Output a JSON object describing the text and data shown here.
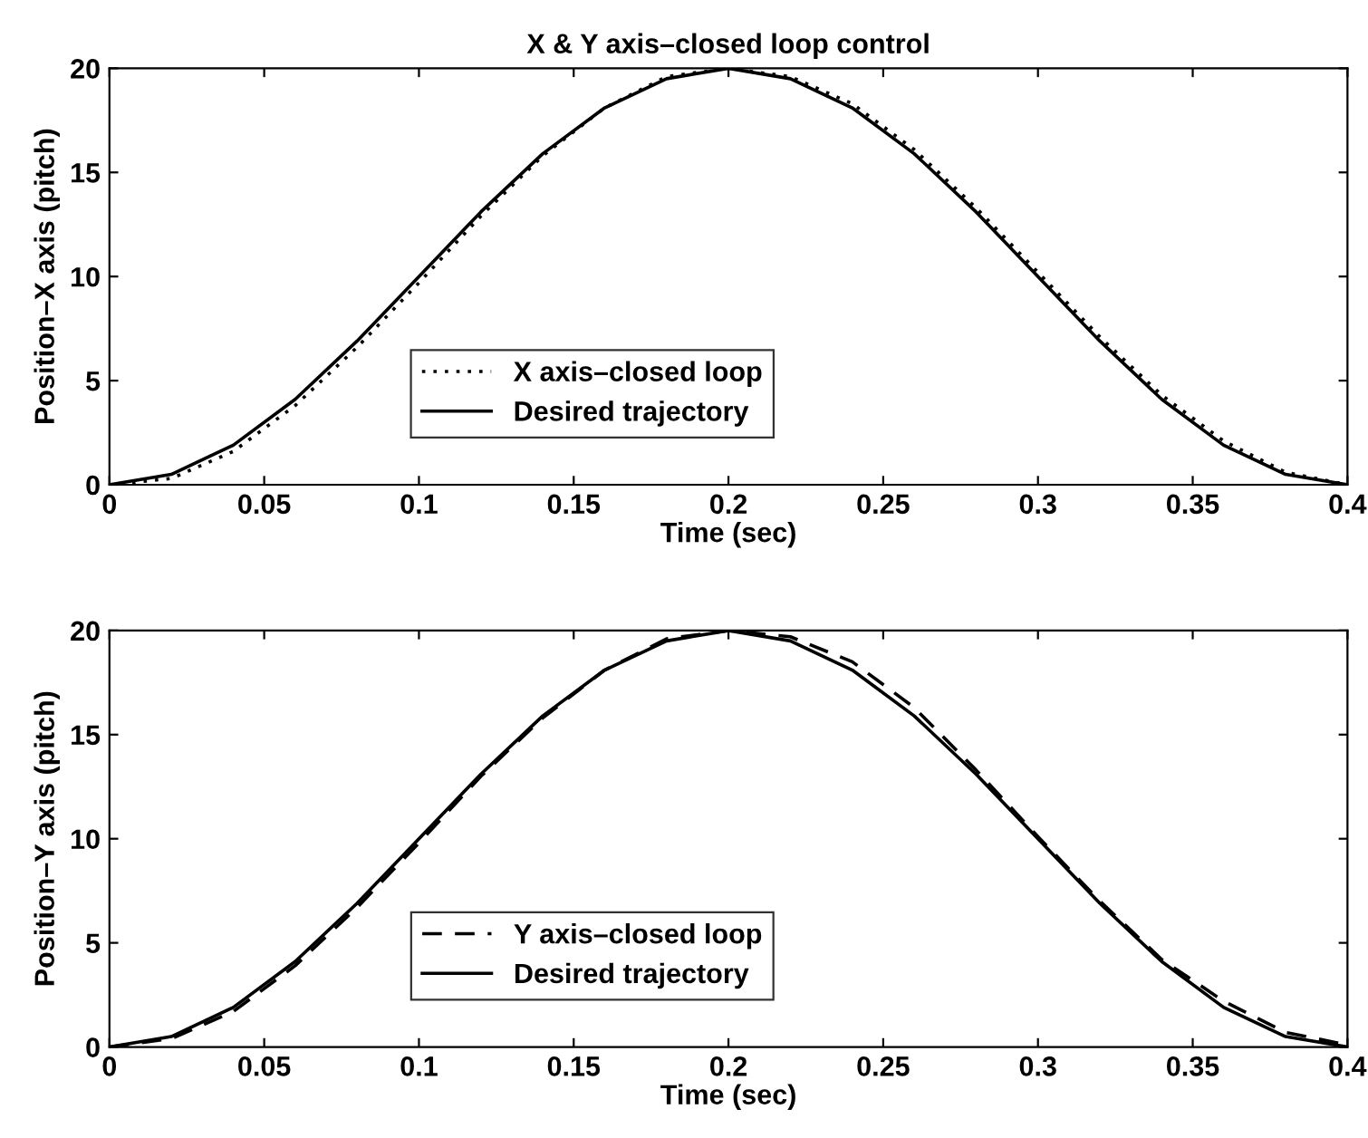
{
  "chart_data": [
    {
      "type": "line",
      "title": "X & Y axis–closed loop control",
      "xlabel": "Time (sec)",
      "ylabel": "Position–X axis (pitch)",
      "xlim": [
        0,
        0.4
      ],
      "ylim": [
        0,
        20
      ],
      "xticks": [
        0,
        0.05,
        0.1,
        0.15,
        0.2,
        0.25,
        0.3,
        0.35,
        0.4
      ],
      "yticks": [
        0,
        5,
        10,
        15,
        20
      ],
      "grid": false,
      "legend": "bottom",
      "x": [
        0,
        0.02,
        0.04,
        0.06,
        0.08,
        0.1,
        0.12,
        0.14,
        0.16,
        0.18,
        0.2,
        0.22,
        0.24,
        0.26,
        0.28,
        0.3,
        0.32,
        0.34,
        0.36,
        0.38,
        0.4
      ],
      "series": [
        {
          "name": "X axis–closed loop",
          "color": "#000000",
          "line_style": "dotted",
          "values": [
            0,
            0.3,
            1.6,
            3.8,
            6.6,
            9.7,
            12.9,
            15.8,
            18.1,
            19.6,
            20,
            19.6,
            18.3,
            16.1,
            13.3,
            10.2,
            7.1,
            4.3,
            2.1,
            0.6,
            0
          ]
        },
        {
          "name": "Desired trajectory",
          "color": "#000000",
          "line_style": "solid",
          "values": [
            0,
            0.5,
            1.9,
            4.1,
            6.9,
            10,
            13.1,
            15.9,
            18.1,
            19.5,
            20,
            19.5,
            18.1,
            15.9,
            13.1,
            10,
            6.9,
            4.1,
            1.9,
            0.5,
            0
          ]
        }
      ]
    },
    {
      "type": "line",
      "xlabel": "Time (sec)",
      "ylabel": "Position–Y axis (pitch)",
      "xlim": [
        0,
        0.4
      ],
      "ylim": [
        0,
        20
      ],
      "xticks": [
        0,
        0.05,
        0.1,
        0.15,
        0.2,
        0.25,
        0.3,
        0.35,
        0.4
      ],
      "yticks": [
        0,
        5,
        10,
        15,
        20
      ],
      "grid": false,
      "legend": "bottom",
      "x": [
        0,
        0.02,
        0.04,
        0.06,
        0.08,
        0.1,
        0.12,
        0.14,
        0.16,
        0.18,
        0.2,
        0.22,
        0.24,
        0.26,
        0.28,
        0.3,
        0.32,
        0.34,
        0.36,
        0.38,
        0.4
      ],
      "series": [
        {
          "name": "Y axis–closed loop",
          "color": "#000000",
          "line_style": "dashed",
          "values": [
            0,
            0.4,
            1.7,
            3.9,
            6.7,
            9.8,
            13.0,
            15.8,
            18.1,
            19.6,
            20,
            19.7,
            18.5,
            16.3,
            13.3,
            10.1,
            7.0,
            4.2,
            2.2,
            0.7,
            0.1
          ]
        },
        {
          "name": "Desired trajectory",
          "color": "#000000",
          "line_style": "solid",
          "values": [
            0,
            0.5,
            1.9,
            4.1,
            6.9,
            10,
            13.1,
            15.9,
            18.1,
            19.5,
            20,
            19.5,
            18.1,
            15.9,
            13.1,
            10,
            6.9,
            4.1,
            1.9,
            0.5,
            0
          ]
        }
      ]
    }
  ]
}
